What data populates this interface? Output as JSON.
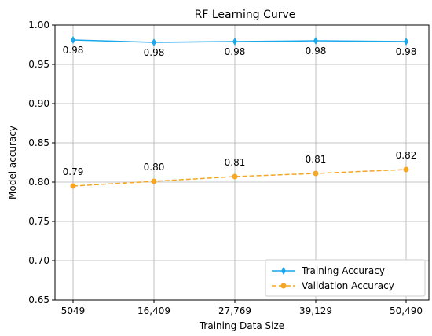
{
  "chart_data": {
    "type": "line",
    "title": "RF Learning Curve",
    "xlabel": "Training Data Size",
    "ylabel": "Model accuracy",
    "categories": [
      "5049",
      "16,409",
      "27,769",
      "39,129",
      "50,490"
    ],
    "ylim": [
      0.65,
      1.0
    ],
    "yticks": [
      "0.65",
      "0.70",
      "0.75",
      "0.80",
      "0.85",
      "0.90",
      "0.95",
      "1.00"
    ],
    "grid": true,
    "legend_position": "bottom-right",
    "series": [
      {
        "name": "Training Accuracy",
        "values": [
          0.981,
          0.978,
          0.979,
          0.98,
          0.979
        ],
        "labels": [
          "0.98",
          "0.98",
          "0.98",
          "0.98",
          "0.98"
        ],
        "color": "#1aa7ec",
        "line_style": "solid",
        "marker": "diamond"
      },
      {
        "name": "Validation Accuracy",
        "values": [
          0.795,
          0.801,
          0.807,
          0.811,
          0.816
        ],
        "labels": [
          "0.79",
          "0.80",
          "0.81",
          "0.81",
          "0.82"
        ],
        "color": "#f5a623",
        "line_style": "dashed",
        "marker": "circle"
      }
    ]
  }
}
